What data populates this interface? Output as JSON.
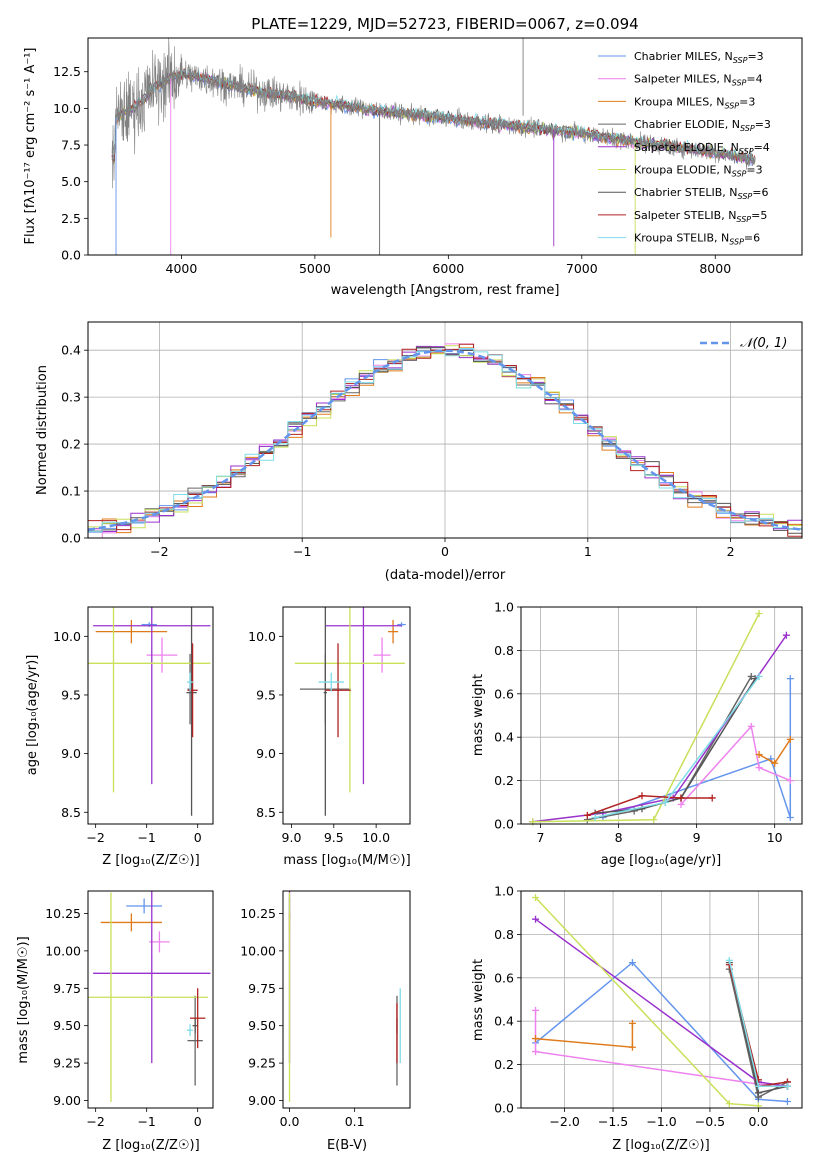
{
  "title": "PLATE=1229, MJD=52723, FIBERID=0067, z=0.094",
  "colors": {
    "chabrier_miles": "#6495ed",
    "salpeter_miles": "#ee82ee",
    "kroupa_miles": "#e07b1b",
    "chabrier_elodie": "#666666",
    "salpeter_elodie": "#9932cc",
    "kroupa_elodie": "#c8e05a",
    "chabrier_stelib": "#555555",
    "salpeter_stelib": "#b22222",
    "kroupa_stelib": "#7fdde8",
    "data": "#808080"
  },
  "chart_data": [
    {
      "id": "spectrum",
      "type": "line",
      "title": "PLATE=1229, MJD=52723, FIBERID=0067, z=0.094",
      "xlabel": "wavelength [Angstrom, rest frame]",
      "ylabel": "Flux [fλ10⁻¹⁷ erg cm⁻² s⁻¹ A⁻¹]",
      "xlim": [
        3300,
        8650
      ],
      "ylim": [
        0,
        14.8
      ],
      "xticks": [
        4000,
        5000,
        6000,
        7000,
        8000
      ],
      "yticks": [
        0.0,
        2.5,
        5.0,
        7.5,
        10.0,
        12.5
      ],
      "ytick_labels": [
        "0.0",
        "2.5",
        "5.0",
        "7.5",
        "10.0",
        "12.5"
      ],
      "legend_position": "top-right",
      "data_curve": {
        "x": [
          3500,
          3600,
          3700,
          3800,
          3900,
          4000,
          4200,
          4500,
          5000,
          5500,
          6000,
          6500,
          7000,
          7500,
          8000,
          8300
        ],
        "y": [
          9.3,
          9.8,
          10.5,
          11.5,
          12.0,
          12.3,
          12.0,
          11.3,
          10.5,
          9.8,
          9.3,
          8.8,
          8.3,
          7.6,
          7.0,
          6.5
        ]
      },
      "series": [
        {
          "name": "Chabrier MILES, N_SSP=3",
          "label_main": "Chabrier MILES, N",
          "label_sub": "SSP",
          "label_tail": "=3",
          "color": "#6495ed"
        },
        {
          "name": "Salpeter MILES, N_SSP=4",
          "label_main": "Salpeter MILES, N",
          "label_sub": "SSP",
          "label_tail": "=4",
          "color": "#ee82ee"
        },
        {
          "name": "Kroupa MILES, N_SSP=3",
          "label_main": "Kroupa MILES, N",
          "label_sub": "SSP",
          "label_tail": "=3",
          "color": "#e07b1b"
        },
        {
          "name": "Chabrier ELODIE, N_SSP=3",
          "label_main": "Chabrier ELODIE, N",
          "label_sub": "SSP",
          "label_tail": "=3",
          "color": "#666666"
        },
        {
          "name": "Salpeter ELODIE, N_SSP=4",
          "label_main": "Salpeter ELODIE, N",
          "label_sub": "SSP",
          "label_tail": "=4",
          "color": "#9932cc"
        },
        {
          "name": "Kroupa ELODIE, N_SSP=3",
          "label_main": "Kroupa ELODIE, N",
          "label_sub": "SSP",
          "label_tail": "=3",
          "color": "#c8e05a"
        },
        {
          "name": "Chabrier STELIB, N_SSP=6",
          "label_main": "Chabrier STELIB, N",
          "label_sub": "SSP",
          "label_tail": "=6",
          "color": "#555555"
        },
        {
          "name": "Salpeter STELIB, N_SSP=5",
          "label_main": "Salpeter STELIB, N",
          "label_sub": "SSP",
          "label_tail": "=5",
          "color": "#b22222"
        },
        {
          "name": "Kroupa STELIB, N_SSP=6",
          "label_main": "Kroupa STELIB, N",
          "label_sub": "SSP",
          "label_tail": "=6",
          "color": "#7fdde8"
        }
      ]
    },
    {
      "id": "residuals",
      "type": "line",
      "xlabel": "(data-model)/error",
      "ylabel": "Normed distribution",
      "xlim": [
        -2.5,
        2.5
      ],
      "ylim": [
        0,
        0.46
      ],
      "xticks": [
        -2,
        -1,
        0,
        1,
        2
      ],
      "xtick_labels": [
        "−2",
        "−1",
        "0",
        "1",
        "2"
      ],
      "yticks": [
        0.0,
        0.1,
        0.2,
        0.3,
        0.4
      ],
      "ytick_labels": [
        "0.0",
        "0.1",
        "0.2",
        "0.3",
        "0.4"
      ],
      "grid": true,
      "legend": "𝒩(0, 1)",
      "legend_position": "top-right",
      "bins": 50
    },
    {
      "id": "age_vs_Z",
      "type": "scatter",
      "xlabel": "Z [log₁₀(Z/Z☉)]",
      "ylabel": "age  [log₁₀(age/yr)]",
      "xlim": [
        -2.15,
        0.3
      ],
      "ylim": [
        8.4,
        10.25
      ],
      "xticks": [
        -2,
        -1,
        0
      ],
      "xtick_labels": [
        "−2",
        "−1",
        "0"
      ],
      "yticks": [
        8.5,
        9.0,
        9.5,
        10.0
      ],
      "ytick_labels": [
        "8.5",
        "9.0",
        "9.5",
        "10.0"
      ],
      "points": [
        {
          "color": "#6495ed",
          "x": -0.95,
          "xerr": 0.15,
          "y": 10.1,
          "yerr": 0.02
        },
        {
          "color": "#ee82ee",
          "x": -0.7,
          "xerr": 0.3,
          "y": 9.84,
          "yerr": 0.15
        },
        {
          "color": "#e07b1b",
          "x": -1.3,
          "xerr": 0.7,
          "y": 10.04,
          "yerr": 0.1
        },
        {
          "color": "#666666",
          "x": -0.15,
          "xerr": 0.05,
          "y": 9.55,
          "yerr": 0.3
        },
        {
          "color": "#9932cc",
          "x": -0.9,
          "xerr": 1.15,
          "y": 10.09,
          "yerr": 1.35
        },
        {
          "color": "#c8e05a",
          "x": -1.65,
          "xerr": 1.9,
          "y": 9.77,
          "yerr": 1.1
        },
        {
          "color": "#555555",
          "x": -0.12,
          "xerr": 0.1,
          "y": 9.52,
          "yerr": 1.05
        },
        {
          "color": "#b22222",
          "x": -0.1,
          "xerr": 0.1,
          "y": 9.54,
          "yerr": 0.4
        },
        {
          "color": "#7fdde8",
          "x": -0.15,
          "xerr": 0.06,
          "y": 9.61,
          "yerr": 0.08
        }
      ]
    },
    {
      "id": "age_vs_mass",
      "type": "scatter",
      "xlabel": "mass [log₁₀(M/M☉)]",
      "xlim": [
        8.9,
        10.4
      ],
      "ylim": [
        8.4,
        10.25
      ],
      "xticks": [
        9.0,
        9.5,
        10.0
      ],
      "xtick_labels": [
        "9.0",
        "9.5",
        "10.0"
      ],
      "yticks": [
        8.5,
        9.0,
        9.5,
        10.0
      ],
      "ytick_labels": [
        "8.5",
        "9.0",
        "9.5",
        "10.0"
      ],
      "points": [
        {
          "color": "#6495ed",
          "x": 10.3,
          "xerr": 0.05,
          "y": 10.1,
          "yerr": 0.02
        },
        {
          "color": "#ee82ee",
          "x": 10.07,
          "xerr": 0.1,
          "y": 9.84,
          "yerr": 0.15
        },
        {
          "color": "#e07b1b",
          "x": 10.2,
          "xerr": 0.06,
          "y": 10.04,
          "yerr": 0.1
        },
        {
          "color": "#666666",
          "x": 9.4,
          "xerr": 0.3,
          "y": 9.55,
          "yerr": 0.3
        },
        {
          "color": "#9932cc",
          "x": 9.85,
          "xerr": 0.45,
          "y": 10.09,
          "yerr": 1.35
        },
        {
          "color": "#c8e05a",
          "x": 9.69,
          "xerr": 0.65,
          "y": 9.77,
          "yerr": 1.1
        },
        {
          "color": "#555555",
          "x": 9.4,
          "xerr": 0.02,
          "y": 9.52,
          "yerr": 1.05
        },
        {
          "color": "#b22222",
          "x": 9.55,
          "xerr": 0.15,
          "y": 9.54,
          "yerr": 0.4
        },
        {
          "color": "#7fdde8",
          "x": 9.47,
          "xerr": 0.15,
          "y": 9.61,
          "yerr": 0.08
        }
      ]
    },
    {
      "id": "weight_vs_age",
      "type": "line",
      "xlabel": "age  [log₁₀(age/yr)]",
      "ylabel": "mass weight",
      "xlim": [
        6.75,
        10.35
      ],
      "ylim": [
        0,
        1.0
      ],
      "xticks": [
        7,
        8,
        9,
        10
      ],
      "xtick_labels": [
        "7",
        "8",
        "9",
        "10"
      ],
      "yticks": [
        0.0,
        0.2,
        0.4,
        0.6,
        0.8,
        1.0
      ],
      "ytick_labels": [
        "0.0",
        "0.2",
        "0.4",
        "0.6",
        "0.8",
        "1.0"
      ],
      "grid": true,
      "series": [
        {
          "color": "#6495ed",
          "x": [
            7.8,
            9.95,
            10.2,
            10.2
          ],
          "y": [
            0.03,
            0.3,
            0.03,
            0.67
          ]
        },
        {
          "color": "#ee82ee",
          "x": [
            8.8,
            9.7,
            9.8,
            10.2
          ],
          "y": [
            0.09,
            0.45,
            0.26,
            0.2
          ]
        },
        {
          "color": "#e07b1b",
          "x": [
            9.8,
            10.0,
            10.2
          ],
          "y": [
            0.32,
            0.28,
            0.39
          ]
        },
        {
          "color": "#666666",
          "x": [
            7.6,
            8.2,
            8.8,
            9.7
          ],
          "y": [
            0.02,
            0.06,
            0.12,
            0.68
          ]
        },
        {
          "color": "#9932cc",
          "x": [
            6.9,
            7.8,
            8.7,
            10.15
          ],
          "y": [
            0.01,
            0.05,
            0.12,
            0.87
          ]
        },
        {
          "color": "#c8e05a",
          "x": [
            6.9,
            8.45,
            9.8
          ],
          "y": [
            0.01,
            0.02,
            0.97
          ]
        },
        {
          "color": "#555555",
          "x": [
            7.7,
            8.3,
            8.6,
            8.8,
            9.75
          ],
          "y": [
            0.05,
            0.07,
            0.1,
            0.12,
            0.67
          ]
        },
        {
          "color": "#b22222",
          "x": [
            7.6,
            8.3,
            8.8,
            9.2
          ],
          "y": [
            0.04,
            0.13,
            0.12,
            0.12
          ]
        },
        {
          "color": "#7fdde8",
          "x": [
            7.7,
            8.6,
            9.8
          ],
          "y": [
            0.03,
            0.1,
            0.68
          ]
        }
      ]
    },
    {
      "id": "mass_vs_Z",
      "type": "scatter",
      "xlabel": "Z [log₁₀(Z/Z☉)]",
      "ylabel": "mass [log₁₀(M/M☉)]",
      "xlim": [
        -2.15,
        0.3
      ],
      "ylim": [
        8.95,
        10.4
      ],
      "xticks": [
        -2,
        -1,
        0
      ],
      "xtick_labels": [
        "−2",
        "−1",
        "0"
      ],
      "yticks": [
        9.0,
        9.25,
        9.5,
        9.75,
        10.0,
        10.25
      ],
      "ytick_labels": [
        "9.00",
        "9.25",
        "9.50",
        "9.75",
        "10.00",
        "10.25"
      ],
      "points": [
        {
          "color": "#6495ed",
          "x": -1.05,
          "xerr": 0.35,
          "y": 10.3,
          "yerr": 0.05
        },
        {
          "color": "#ee82ee",
          "x": -0.75,
          "xerr": 0.2,
          "y": 10.06,
          "yerr": 0.07
        },
        {
          "color": "#e07b1b",
          "x": -1.3,
          "xerr": 0.6,
          "y": 10.19,
          "yerr": 0.06
        },
        {
          "color": "#666666",
          "x": -0.05,
          "xerr": 0.15,
          "y": 9.4,
          "yerr": 0.3
        },
        {
          "color": "#9932cc",
          "x": -0.9,
          "xerr": 1.15,
          "y": 9.85,
          "yerr": 0.6
        },
        {
          "color": "#c8e05a",
          "x": -1.7,
          "xerr": 1.9,
          "y": 9.69,
          "yerr": 0.7
        },
        {
          "color": "#555555",
          "x": -0.05,
          "xerr": 0.05,
          "y": 9.5,
          "yerr": 0.05
        },
        {
          "color": "#b22222",
          "x": 0.0,
          "xerr": 0.15,
          "y": 9.55,
          "yerr": 0.2
        },
        {
          "color": "#7fdde8",
          "x": -0.15,
          "xerr": 0.06,
          "y": 9.47,
          "yerr": 0.04
        }
      ]
    },
    {
      "id": "mass_vs_ebv",
      "type": "scatter",
      "xlabel": "E(B-V)",
      "xlim": [
        -0.01,
        0.185
      ],
      "ylim": [
        8.95,
        10.4
      ],
      "xticks": [
        0.0,
        0.1
      ],
      "xtick_labels": [
        "0.0",
        "0.1"
      ],
      "yticks": [
        9.0,
        9.25,
        9.5,
        9.75,
        10.0,
        10.25
      ],
      "ytick_labels": [
        "9.00",
        "9.25",
        "9.50",
        "9.75",
        "10.00",
        "10.25"
      ],
      "points": [
        {
          "color": "#6495ed",
          "x": 0.0,
          "xerr": 0.0,
          "y": 10.28,
          "yerr": 0.07
        },
        {
          "color": "#ee82ee",
          "x": 0.0,
          "xerr": 0.0,
          "y": 10.06,
          "yerr": 0.07
        },
        {
          "color": "#e07b1b",
          "x": 0.0,
          "xerr": 0.0,
          "y": 10.19,
          "yerr": 0.06
        },
        {
          "color": "#666666",
          "x": 0.165,
          "xerr": 0.0,
          "y": 9.4,
          "yerr": 0.3
        },
        {
          "color": "#9932cc",
          "x": 0.0,
          "xerr": 0.0,
          "y": 9.85,
          "yerr": 0.6
        },
        {
          "color": "#c8e05a",
          "x": 0.0,
          "xerr": 0.0,
          "y": 9.69,
          "yerr": 0.7
        },
        {
          "color": "#555555",
          "x": 0.165,
          "xerr": 0.0,
          "y": 9.5,
          "yerr": 0.05
        },
        {
          "color": "#b22222",
          "x": 0.165,
          "xerr": 0.0,
          "y": 9.45,
          "yerr": 0.2
        },
        {
          "color": "#7fdde8",
          "x": 0.17,
          "xerr": 0.0,
          "y": 9.5,
          "yerr": 0.25
        }
      ]
    },
    {
      "id": "weight_vs_Z",
      "type": "line",
      "xlabel": "Z [log₁₀(Z/Z☉)]",
      "ylabel": "mass weight",
      "xlim": [
        -2.45,
        0.45
      ],
      "ylim": [
        0,
        1.0
      ],
      "xticks": [
        -2.0,
        -1.5,
        -1.0,
        -0.5,
        0.0
      ],
      "xtick_labels": [
        "−2.0",
        "−1.5",
        "−1.0",
        "−0.5",
        "0.0"
      ],
      "yticks": [
        0.0,
        0.2,
        0.4,
        0.6,
        0.8,
        1.0
      ],
      "ytick_labels": [
        "0.0",
        "0.2",
        "0.4",
        "0.6",
        "0.8",
        "1.0"
      ],
      "grid": true,
      "series": [
        {
          "color": "#6495ed",
          "x": [
            -2.3,
            -1.3,
            0.0,
            0.3
          ],
          "y": [
            0.3,
            0.67,
            0.04,
            0.03
          ]
        },
        {
          "color": "#ee82ee",
          "x": [
            -2.3,
            -2.3,
            0.0,
            0.3
          ],
          "y": [
            0.45,
            0.26,
            0.11,
            0.1
          ]
        },
        {
          "color": "#e07b1b",
          "x": [
            -2.3,
            -1.3,
            -1.3
          ],
          "y": [
            0.32,
            0.28,
            0.39
          ]
        },
        {
          "color": "#666666",
          "x": [
            -0.3,
            0.0,
            0.3
          ],
          "y": [
            0.64,
            0.05,
            0.12
          ]
        },
        {
          "color": "#9932cc",
          "x": [
            -2.3,
            0.0,
            0.3
          ],
          "y": [
            0.87,
            0.12,
            0.1
          ]
        },
        {
          "color": "#c8e05a",
          "x": [
            -2.3,
            -0.3,
            0.0
          ],
          "y": [
            0.97,
            0.02,
            0.01
          ]
        },
        {
          "color": "#555555",
          "x": [
            -0.3,
            0.0,
            0.3
          ],
          "y": [
            0.67,
            0.07,
            0.1
          ]
        },
        {
          "color": "#b22222",
          "x": [
            -0.3,
            0.0,
            0.0,
            0.3
          ],
          "y": [
            0.66,
            0.13,
            0.1,
            0.12
          ]
        },
        {
          "color": "#7fdde8",
          "x": [
            -0.3,
            0.0,
            0.3
          ],
          "y": [
            0.68,
            0.1,
            0.1
          ]
        }
      ]
    }
  ]
}
